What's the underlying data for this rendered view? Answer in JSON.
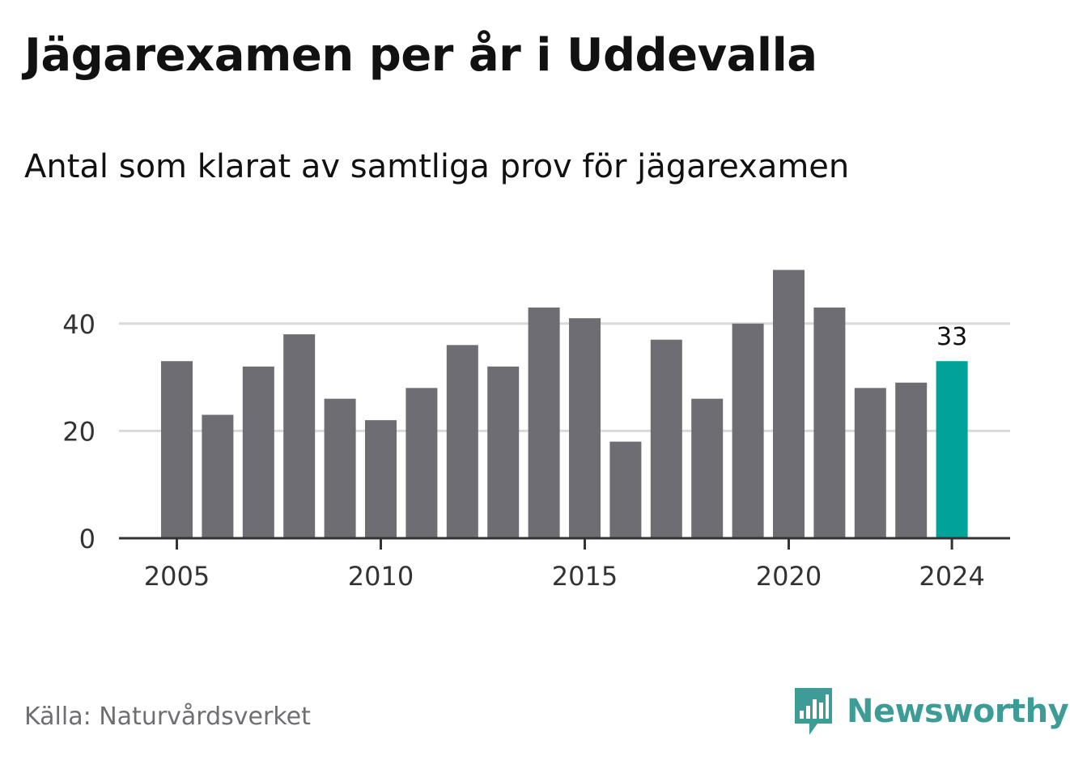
{
  "title": "Jägarexamen per år i Uddevalla",
  "subtitle": "Antal som klarat av samtliga prov för jägarexamen",
  "source": "Källa: Naturvårdsverket",
  "brand": {
    "name": "Newsworthy",
    "icon": "newsworthy-chat-bars-icon",
    "color": "#3e9c96"
  },
  "colors": {
    "bar": "#6e6d73",
    "highlight": "#00a399",
    "grid": "#d9d9d9",
    "axis": "#333333",
    "text": "#333333"
  },
  "chart_data": {
    "type": "bar",
    "categories": [
      "2005",
      "2006",
      "2007",
      "2008",
      "2009",
      "2010",
      "2011",
      "2012",
      "2013",
      "2014",
      "2015",
      "2016",
      "2017",
      "2018",
      "2019",
      "2020",
      "2021",
      "2022",
      "2023",
      "2024"
    ],
    "values": [
      33,
      23,
      32,
      38,
      26,
      22,
      28,
      36,
      32,
      43,
      41,
      18,
      37,
      26,
      40,
      50,
      43,
      28,
      29,
      33
    ],
    "title": "Jägarexamen per år i Uddevalla",
    "subtitle": "Antal som klarat av samtliga prov för jägarexamen",
    "xlabel": "",
    "ylabel": "",
    "ylim": [
      0,
      50
    ],
    "yticks": [
      0,
      20,
      40
    ],
    "xticks": [
      "2005",
      "2010",
      "2015",
      "2020",
      "2024"
    ],
    "highlight": {
      "category": "2024",
      "label": "33"
    },
    "grid": true,
    "legend": "none"
  }
}
